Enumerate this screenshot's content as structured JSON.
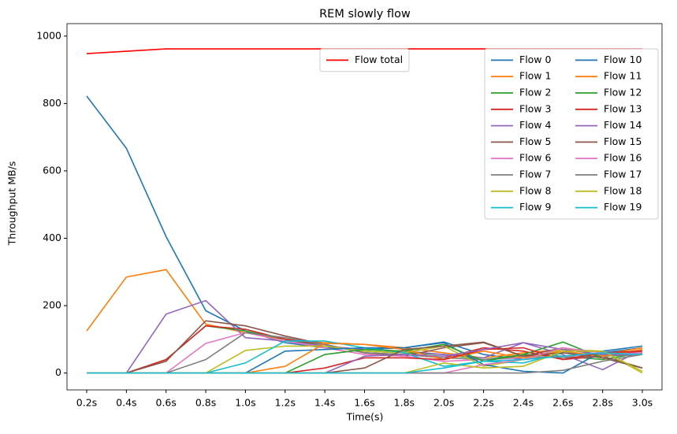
{
  "chart_data": {
    "type": "line",
    "title": "REM slowly flow",
    "x_label": "Time(s)",
    "y_label": "Throughput MB/s",
    "categories": [
      "0.2s",
      "0.4s",
      "0.6s",
      "0.8s",
      "1.0s",
      "1.2s",
      "1.4s",
      "1.6s",
      "1.8s",
      "2.0s",
      "2.2s",
      "2.4s",
      "2.6s",
      "2.8s",
      "3.0s"
    ],
    "ylim": [
      -50,
      1037
    ],
    "yticks": [
      0,
      200,
      400,
      600,
      800,
      1000
    ],
    "legends": [
      {
        "loc": "upper center",
        "columns": 1
      },
      {
        "loc": "upper right",
        "columns": 2
      }
    ],
    "series": [
      {
        "name": "Flow total",
        "color": "#ff0000",
        "legend": 0,
        "values": [
          948,
          955,
          962,
          962,
          962,
          962,
          962,
          962,
          962,
          962,
          962,
          962,
          962,
          962,
          962
        ]
      },
      {
        "name": "Flow 0",
        "color": "#1f77b4",
        "legend": 1,
        "values": [
          822,
          667,
          405,
          185,
          125,
          90,
          75,
          70,
          75,
          92,
          55,
          40,
          50,
          60,
          75
        ]
      },
      {
        "name": "Flow 1",
        "color": "#ff7f0e",
        "legend": 1,
        "values": [
          125,
          285,
          307,
          145,
          120,
          100,
          90,
          85,
          75,
          60,
          45,
          60,
          70,
          55,
          75
        ]
      },
      {
        "name": "Flow 2",
        "color": "#2ca02c",
        "legend": 1,
        "values": [
          0,
          0,
          40,
          140,
          125,
          100,
          80,
          65,
          60,
          55,
          40,
          55,
          50,
          40,
          60
        ]
      },
      {
        "name": "Flow 3",
        "color": "#d62728",
        "legend": 1,
        "values": [
          0,
          0,
          40,
          140,
          130,
          100,
          85,
          60,
          55,
          45,
          75,
          65,
          40,
          50,
          65
        ]
      },
      {
        "name": "Flow 4",
        "color": "#9467bd",
        "legend": 1,
        "values": [
          0,
          0,
          175,
          215,
          105,
          95,
          80,
          70,
          65,
          55,
          45,
          90,
          55,
          10,
          70
        ]
      },
      {
        "name": "Flow 5",
        "color": "#8c564b",
        "legend": 1,
        "values": [
          0,
          0,
          35,
          155,
          140,
          110,
          85,
          60,
          50,
          75,
          90,
          50,
          75,
          50,
          15
        ]
      },
      {
        "name": "Flow 6",
        "color": "#e377c2",
        "legend": 1,
        "values": [
          0,
          0,
          0,
          88,
          120,
          95,
          75,
          55,
          50,
          35,
          40,
          45,
          50,
          55,
          60
        ]
      },
      {
        "name": "Flow 7",
        "color": "#7f7f7f",
        "legend": 1,
        "values": [
          0,
          0,
          0,
          40,
          120,
          105,
          85,
          60,
          55,
          45,
          40,
          50,
          45,
          50,
          55
        ]
      },
      {
        "name": "Flow 8",
        "color": "#bcbd22",
        "legend": 1,
        "values": [
          0,
          0,
          0,
          0,
          67,
          80,
          80,
          65,
          60,
          80,
          20,
          40,
          70,
          65,
          0
        ]
      },
      {
        "name": "Flow 9",
        "color": "#17becf",
        "legend": 1,
        "values": [
          0,
          0,
          0,
          0,
          30,
          95,
          95,
          75,
          60,
          20,
          35,
          30,
          60,
          55,
          55
        ]
      },
      {
        "name": "Flow 10",
        "color": "#1f77b4",
        "legend": 1,
        "values": [
          0,
          0,
          0,
          0,
          0,
          65,
          70,
          75,
          75,
          90,
          25,
          5,
          0,
          65,
          80
        ]
      },
      {
        "name": "Flow 11",
        "color": "#ff7f0e",
        "legend": 1,
        "values": [
          0,
          0,
          0,
          0,
          0,
          20,
          88,
          85,
          70,
          40,
          65,
          45,
          65,
          50,
          70
        ]
      },
      {
        "name": "Flow 12",
        "color": "#2ca02c",
        "legend": 1,
        "values": [
          0,
          0,
          0,
          0,
          0,
          0,
          55,
          70,
          65,
          85,
          35,
          55,
          92,
          45,
          15
        ]
      },
      {
        "name": "Flow 13",
        "color": "#d62728",
        "legend": 1,
        "values": [
          0,
          0,
          0,
          0,
          0,
          0,
          15,
          45,
          45,
          40,
          70,
          75,
          40,
          60,
          65
        ]
      },
      {
        "name": "Flow 14",
        "color": "#9467bd",
        "legend": 1,
        "values": [
          0,
          0,
          0,
          0,
          0,
          0,
          0,
          50,
          55,
          50,
          70,
          90,
          70,
          55,
          55
        ]
      },
      {
        "name": "Flow 15",
        "color": "#8c564b",
        "legend": 1,
        "values": [
          0,
          0,
          0,
          0,
          0,
          0,
          0,
          15,
          70,
          80,
          92,
          50,
          60,
          45,
          15
        ]
      },
      {
        "name": "Flow 16",
        "color": "#e377c2",
        "legend": 1,
        "values": [
          0,
          0,
          0,
          0,
          0,
          0,
          0,
          0,
          0,
          0,
          25,
          40,
          75,
          60,
          55
        ]
      },
      {
        "name": "Flow 17",
        "color": "#7f7f7f",
        "legend": 1,
        "values": [
          0,
          0,
          0,
          0,
          0,
          0,
          0,
          0,
          0,
          0,
          0,
          0,
          8,
          35,
          55
        ]
      },
      {
        "name": "Flow 18",
        "color": "#bcbd22",
        "legend": 1,
        "values": [
          0,
          0,
          0,
          0,
          0,
          0,
          0,
          0,
          0,
          30,
          15,
          20,
          65,
          65,
          5
        ]
      },
      {
        "name": "Flow 19",
        "color": "#17becf",
        "legend": 1,
        "values": [
          0,
          0,
          0,
          0,
          0,
          0,
          0,
          0,
          0,
          15,
          35,
          40,
          50,
          60,
          55
        ]
      }
    ]
  }
}
